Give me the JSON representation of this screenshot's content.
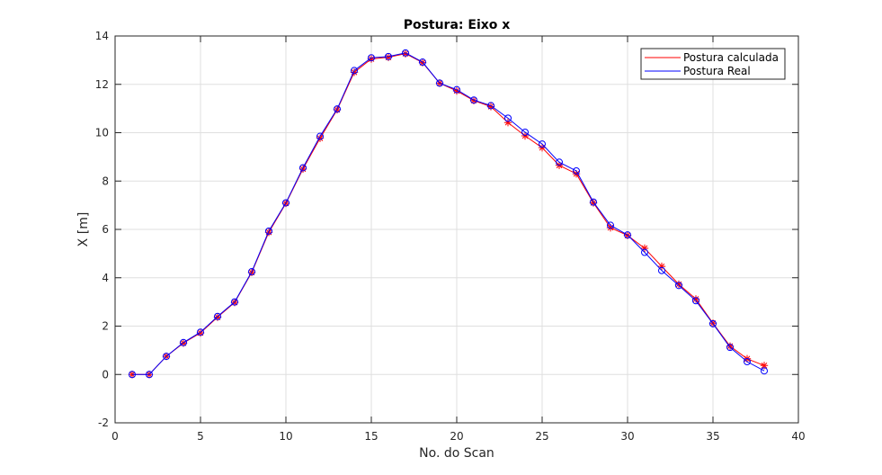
{
  "chart_data": {
    "type": "line",
    "title": "Postura: Eixo x",
    "xlabel": "No. do Scan",
    "ylabel": "X [m]",
    "xlim": [
      0,
      40
    ],
    "ylim": [
      -2,
      14
    ],
    "xticks": [
      0,
      5,
      10,
      15,
      20,
      25,
      30,
      35,
      40
    ],
    "yticks": [
      -2,
      0,
      2,
      4,
      6,
      8,
      10,
      12,
      14
    ],
    "grid": true,
    "legend_position": "top-right",
    "x": [
      1,
      2,
      3,
      4,
      5,
      6,
      7,
      8,
      9,
      10,
      11,
      12,
      13,
      14,
      15,
      16,
      17,
      18,
      19,
      20,
      21,
      22,
      23,
      24,
      25,
      26,
      27,
      28,
      29,
      30,
      31,
      32,
      33,
      34,
      35,
      36,
      37,
      38
    ],
    "series": [
      {
        "name": "Postura calculada",
        "color": "#ff0000",
        "marker": "star",
        "values": [
          0.0,
          0.0,
          0.75,
          1.3,
          1.72,
          2.37,
          2.98,
          4.22,
          5.88,
          7.08,
          8.5,
          9.77,
          10.95,
          12.5,
          13.05,
          13.12,
          13.27,
          12.9,
          12.05,
          11.73,
          11.33,
          11.08,
          10.42,
          9.87,
          9.38,
          8.65,
          8.3,
          7.1,
          6.07,
          5.75,
          5.22,
          4.47,
          3.73,
          3.12,
          2.12,
          1.17,
          0.65,
          0.37
        ]
      },
      {
        "name": "Postura Real",
        "color": "#0000ff",
        "marker": "circle",
        "values": [
          0.0,
          0.0,
          0.75,
          1.32,
          1.75,
          2.4,
          3.0,
          4.25,
          5.93,
          7.1,
          8.55,
          9.85,
          10.98,
          12.57,
          13.1,
          13.15,
          13.3,
          12.92,
          12.05,
          11.78,
          11.35,
          11.12,
          10.6,
          10.02,
          9.53,
          8.78,
          8.42,
          7.13,
          6.17,
          5.77,
          5.05,
          4.3,
          3.68,
          3.05,
          2.1,
          1.12,
          0.53,
          0.15
        ]
      }
    ]
  }
}
